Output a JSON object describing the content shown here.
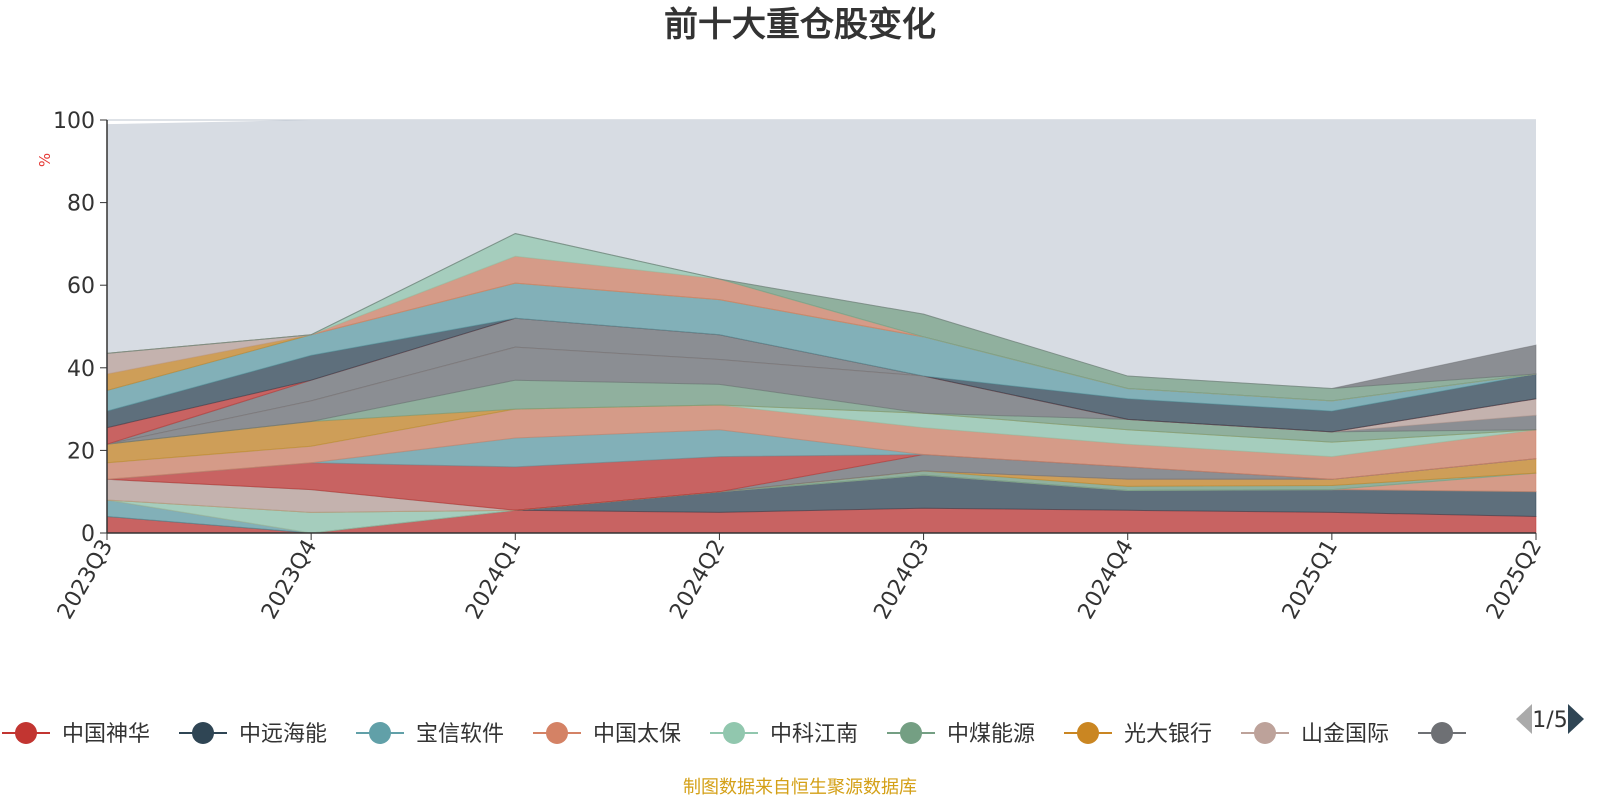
{
  "title": "前十大重仓股变化",
  "source_note": "制图数据来自恒生聚源数据库",
  "legend_pager": {
    "text": "1/5",
    "prev_icon": "triangle-left-icon",
    "next_icon": "triangle-right-icon"
  },
  "colors": {
    "background_area": "#d7dce3",
    "title": "#333333",
    "axis": "#333333",
    "ylabel": "#e53935",
    "source_note": "#d4a017",
    "legend_text": "#333333",
    "pager_inactive": "#aaaaaa",
    "pager_active": "#2f4554"
  },
  "chart_data": {
    "type": "area",
    "stacked": true,
    "title": "前十大重仓股变化",
    "ylabel": "%",
    "xlabel": "",
    "ylim": [
      0,
      100
    ],
    "yticks": [
      0,
      20,
      40,
      60,
      80,
      100
    ],
    "grid": true,
    "legend_position": "bottom",
    "x": [
      "2023Q3",
      "2023Q4",
      "2024Q1",
      "2024Q2",
      "2024Q3",
      "2024Q4",
      "2025Q1",
      "2025Q2"
    ],
    "background_total": [
      99,
      100,
      100,
      100,
      100,
      100,
      100,
      100
    ],
    "series": [
      {
        "name": "中国神华",
        "color": "#c23531",
        "values": [
          4.0,
          0.0,
          5.5,
          5.0,
          6.0,
          5.5,
          5.0,
          4.0
        ]
      },
      {
        "name": "中远海能",
        "color": "#2f4554",
        "values": [
          0.0,
          0.0,
          0.0,
          5.0,
          8.0,
          4.8,
          5.5,
          6.0
        ]
      },
      {
        "name": "宝信软件",
        "color": "#61a0a8",
        "values": [
          4.0,
          0.0,
          0.0,
          0.0,
          0.0,
          0.0,
          0.0,
          0.0
        ]
      },
      {
        "name": "中国太保",
        "color": "#d48265",
        "values": [
          0.0,
          0.0,
          0.0,
          0.0,
          0.0,
          0.0,
          0.0,
          4.5
        ]
      },
      {
        "name": "中科江南",
        "color": "#91c7ae",
        "values": [
          0.0,
          5.0,
          0.0,
          0.0,
          0.0,
          0.0,
          0.0,
          0.0
        ]
      },
      {
        "name": "中煤能源",
        "color": "#749f83",
        "values": [
          0.0,
          0.0,
          0.0,
          0.0,
          1.0,
          1.0,
          1.0,
          0.0
        ]
      },
      {
        "name": "光大银行",
        "color": "#ca8622",
        "values": [
          0.0,
          0.0,
          0.0,
          0.0,
          0.0,
          1.7,
          1.5,
          3.5
        ]
      },
      {
        "name": "山金国际",
        "color": "#bda29a",
        "values": [
          5.0,
          5.5,
          0.0,
          0.0,
          0.0,
          0.0,
          0.0,
          0.0
        ]
      },
      {
        "name": "",
        "color": "#6e7074",
        "values": [
          0.0,
          0.0,
          0.0,
          0.0,
          4.0,
          3.0,
          0.0,
          0.0
        ]
      },
      {
        "name": "",
        "color": "#c23531",
        "values": [
          0.0,
          6.5,
          10.5,
          8.5,
          0.0,
          0.0,
          0.0,
          0.0
        ]
      },
      {
        "name": "",
        "color": "#61a0a8",
        "values": [
          0.0,
          0.0,
          7.0,
          6.5,
          0.0,
          0.0,
          0.0,
          0.0
        ]
      },
      {
        "name": "",
        "color": "#d48265",
        "values": [
          4.0,
          4.0,
          7.0,
          6.0,
          6.5,
          5.5,
          5.5,
          7.0
        ]
      },
      {
        "name": "",
        "color": "#91c7ae",
        "values": [
          0.0,
          0.0,
          0.0,
          0.0,
          3.5,
          3.5,
          3.5,
          0.0
        ]
      },
      {
        "name": "",
        "color": "#ca8622",
        "values": [
          4.5,
          6.0,
          0.0,
          0.0,
          0.0,
          0.0,
          0.0,
          0.0
        ]
      },
      {
        "name": "",
        "color": "#749f83",
        "values": [
          0.0,
          0.0,
          7.0,
          5.0,
          0.0,
          2.5,
          2.5,
          0.0
        ]
      },
      {
        "name": "",
        "color": "#6e7074",
        "values": [
          0.0,
          5.0,
          8.0,
          6.0,
          9.0,
          0.0,
          0.0,
          3.5
        ]
      },
      {
        "name": "",
        "color": "#bda29a",
        "values": [
          0.0,
          0.0,
          0.0,
          0.0,
          0.0,
          0.0,
          0.0,
          4.0
        ]
      },
      {
        "name": "",
        "color": "#6e7074",
        "values": [
          0.0,
          5.0,
          7.0,
          6.0,
          0.0,
          0.0,
          0.0,
          0.0
        ]
      },
      {
        "name": "",
        "color": "#c23531",
        "values": [
          4.0,
          0.0,
          0.0,
          0.0,
          0.0,
          0.0,
          0.0,
          0.0
        ]
      },
      {
        "name": "",
        "color": "#2f4554",
        "values": [
          4.0,
          6.0,
          0.0,
          0.0,
          0.0,
          5.0,
          5.0,
          6.0
        ]
      },
      {
        "name": "",
        "color": "#61a0a8",
        "values": [
          5.0,
          5.0,
          8.5,
          8.5,
          9.5,
          2.5,
          2.5,
          0.0
        ]
      },
      {
        "name": "",
        "color": "#ca8622",
        "values": [
          4.0,
          0.0,
          0.0,
          0.0,
          0.0,
          0.0,
          0.0,
          0.0
        ]
      },
      {
        "name": "",
        "color": "#bda29a",
        "values": [
          5.0,
          0.0,
          0.0,
          0.0,
          0.0,
          0.0,
          0.0,
          0.0
        ]
      },
      {
        "name": "",
        "color": "#d48265",
        "values": [
          0.0,
          0.0,
          6.5,
          5.0,
          0.0,
          0.0,
          0.0,
          0.0
        ]
      },
      {
        "name": "",
        "color": "#91c7ae",
        "values": [
          0.0,
          0.0,
          5.5,
          0.0,
          0.0,
          0.0,
          0.0,
          0.0
        ]
      },
      {
        "name": "",
        "color": "#749f83",
        "values": [
          0.0,
          0.0,
          0.0,
          0.0,
          5.5,
          3.0,
          3.0,
          0.0
        ]
      },
      {
        "name": "",
        "color": "#6e7074",
        "values": [
          0.0,
          0.0,
          0.0,
          0.0,
          0.0,
          0.0,
          0.0,
          7.0
        ]
      }
    ]
  }
}
